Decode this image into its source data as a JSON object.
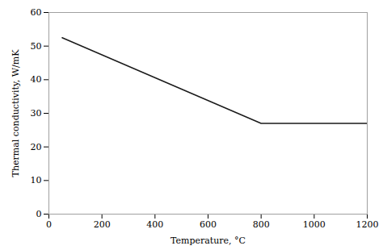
{
  "chart_data": {
    "type": "line",
    "x": [
      50,
      800,
      1200
    ],
    "values": [
      52.5,
      27.0,
      27.0
    ],
    "color": "#1a1a1a",
    "xlabel": "Temperature, °C",
    "ylabel": "Thermal conductivity, W/mK",
    "xlim": [
      0,
      1200
    ],
    "ylim": [
      0,
      60
    ],
    "xticks": [
      0,
      200,
      400,
      600,
      800,
      1000,
      1200
    ],
    "yticks": [
      0,
      10,
      20,
      30,
      40,
      50,
      60
    ],
    "grid": false
  }
}
